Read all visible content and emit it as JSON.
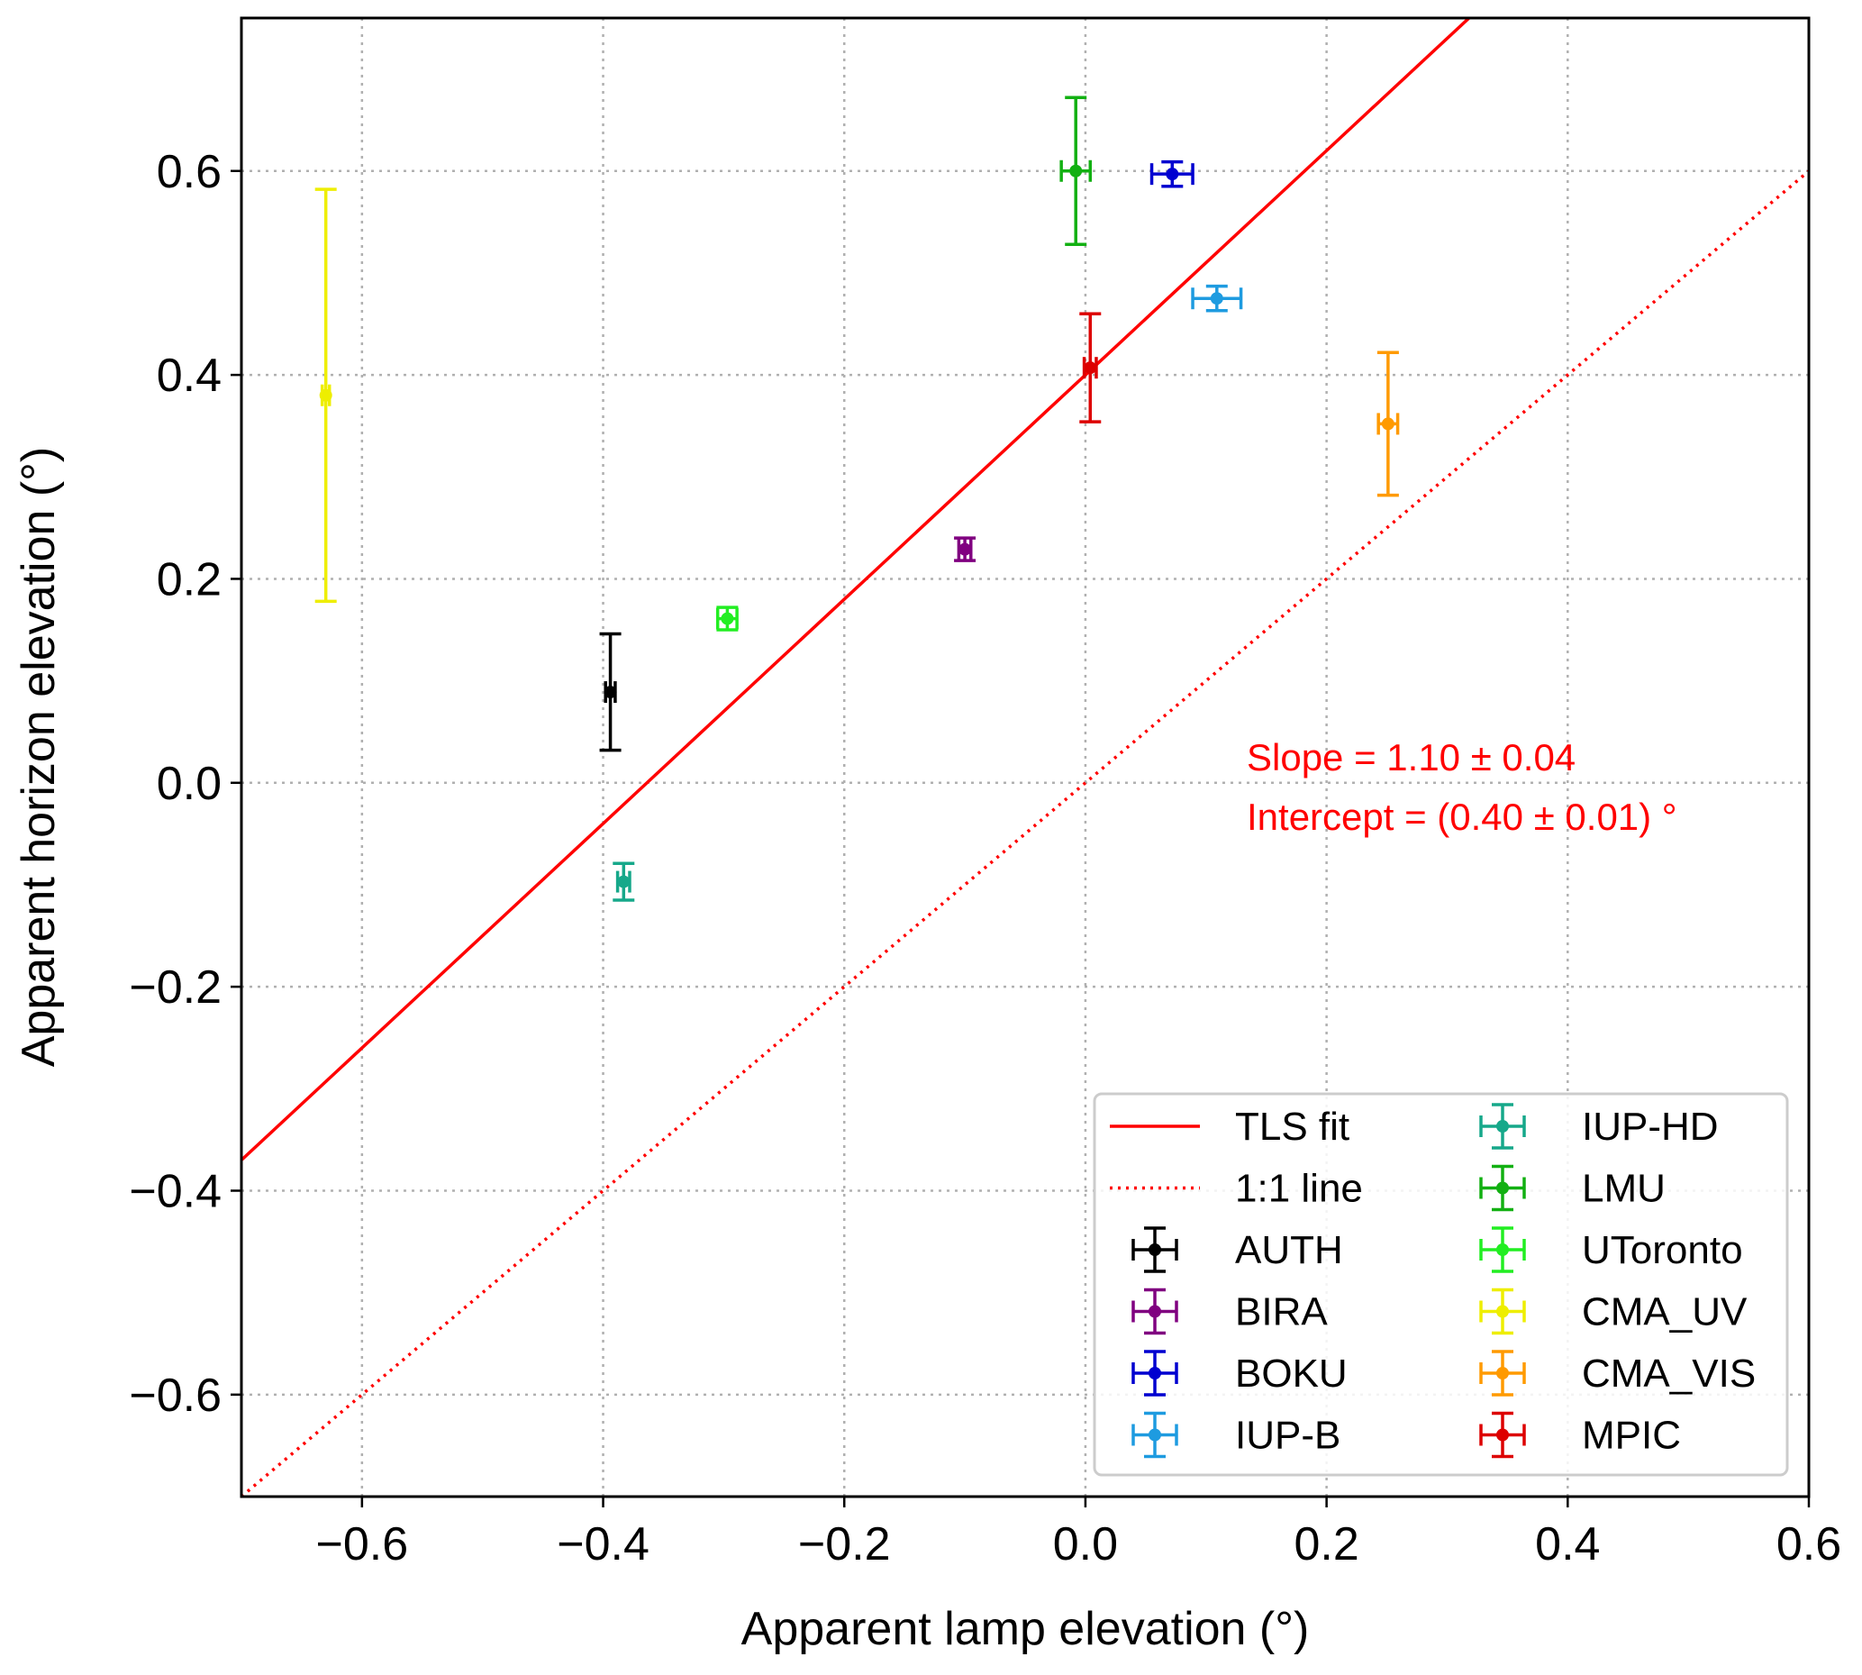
{
  "chart_data": {
    "type": "scatter",
    "title": "",
    "xlabel": "Apparent lamp elevation (°)",
    "ylabel": "Apparent horizon elevation (°)",
    "xlim": [
      -0.7,
      0.6
    ],
    "ylim": [
      -0.7,
      0.75
    ],
    "xticks": [
      -0.6,
      -0.4,
      -0.2,
      0.0,
      0.2,
      0.4,
      0.6
    ],
    "xtick_labels": [
      "−0.6",
      "−0.4",
      "−0.2",
      "0.0",
      "0.2",
      "0.4",
      "0.6"
    ],
    "yticks": [
      -0.6,
      -0.4,
      -0.2,
      0.0,
      0.2,
      0.4,
      0.6
    ],
    "ytick_labels": [
      "−0.6",
      "−0.4",
      "−0.2",
      "0.0",
      "0.2",
      "0.4",
      "0.6"
    ],
    "grid": true,
    "legend_placement": "lower-right",
    "lines": [
      {
        "name": "TLS fit",
        "slope": 1.1,
        "intercept": 0.4,
        "color": "#ff0000",
        "style": "solid"
      },
      {
        "name": "1:1 line",
        "slope": 1.0,
        "intercept": 0.0,
        "color": "#ff0000",
        "style": "dotted"
      }
    ],
    "series": [
      {
        "name": "AUTH",
        "color": "#000000",
        "x": -0.394,
        "y": 0.089,
        "xerr": 0.004,
        "yerr": 0.057
      },
      {
        "name": "BIRA",
        "color": "#800080",
        "x": -0.1,
        "y": 0.229,
        "xerr": 0.005,
        "yerr": 0.011
      },
      {
        "name": "BOKU",
        "color": "#0000d0",
        "x": 0.072,
        "y": 0.597,
        "xerr": 0.017,
        "yerr": 0.012
      },
      {
        "name": "IUP-B",
        "color": "#1e9be0",
        "x": 0.109,
        "y": 0.475,
        "xerr": 0.02,
        "yerr": 0.012
      },
      {
        "name": "IUP-HD",
        "color": "#16a88a",
        "x": -0.383,
        "y": -0.097,
        "xerr": 0.005,
        "yerr": 0.018
      },
      {
        "name": "LMU",
        "color": "#12b012",
        "x": -0.008,
        "y": 0.6,
        "xerr": 0.012,
        "yerr": 0.072
      },
      {
        "name": "UToronto",
        "color": "#22ee22",
        "x": -0.297,
        "y": 0.161,
        "xerr": 0.008,
        "yerr": 0.011
      },
      {
        "name": "CMA_UV",
        "color": "#eeee00",
        "x": -0.63,
        "y": 0.38,
        "xerr": 0.003,
        "yerr": 0.202
      },
      {
        "name": "CMA_VIS",
        "color": "#ff9a00",
        "x": 0.251,
        "y": 0.352,
        "xerr": 0.008,
        "yerr": 0.07
      },
      {
        "name": "MPIC",
        "color": "#dd0000",
        "x": 0.004,
        "y": 0.407,
        "xerr": 0.005,
        "yerr": 0.053
      }
    ],
    "annotations": [
      "Slope = 1.10 ± 0.04",
      "Intercept = (0.40 ± 0.01) °"
    ],
    "annotation_color": "#ff0000"
  }
}
